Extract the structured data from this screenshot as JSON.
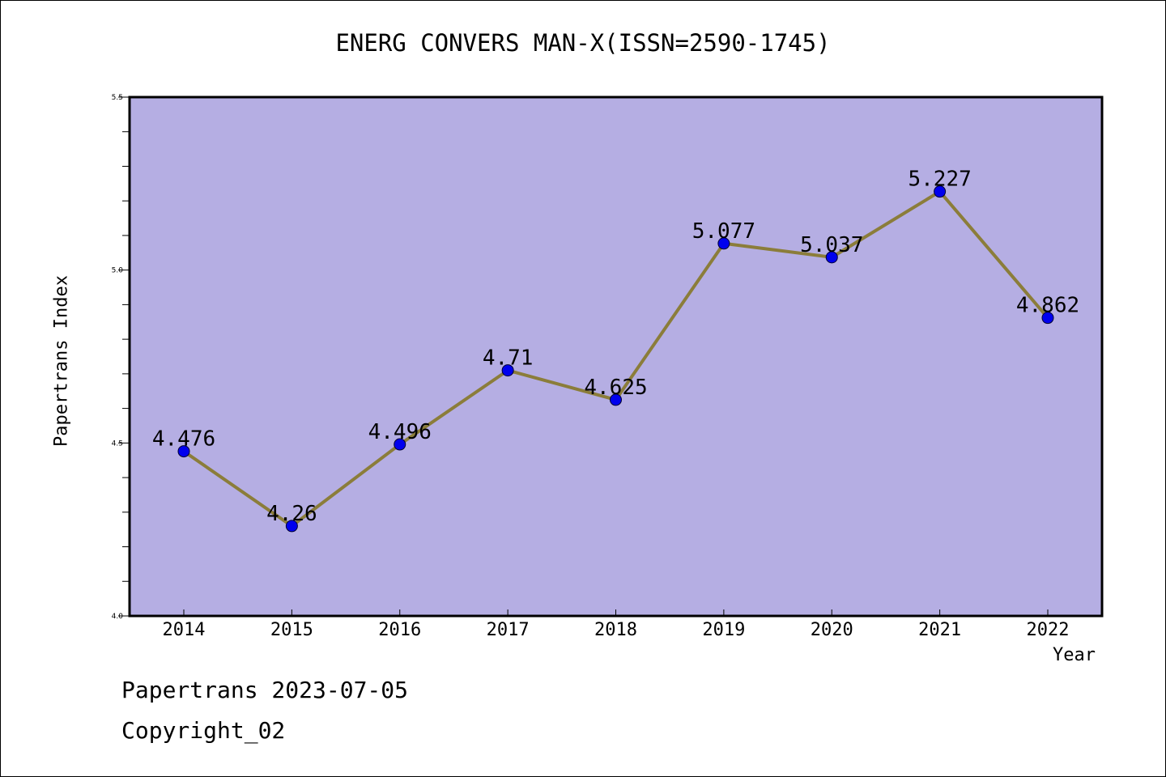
{
  "footer": {
    "line1": "Papertrans 2023-07-05",
    "line2": "Copyright_02"
  },
  "chart_data": {
    "type": "line",
    "title": "ENERG CONVERS MAN-X(ISSN=2590-1745)",
    "xlabel": "Year",
    "ylabel": "Papertrans Index",
    "categories": [
      "2014",
      "2015",
      "2016",
      "2017",
      "2018",
      "2019",
      "2020",
      "2021",
      "2022"
    ],
    "values": [
      4.476,
      4.26,
      4.496,
      4.71,
      4.625,
      5.077,
      5.037,
      5.227,
      4.862
    ],
    "data_labels": [
      "4.476",
      "4.26",
      "4.496",
      "4.71",
      "4.625",
      "5.077",
      "5.037",
      "5.227",
      "4.862"
    ],
    "ylim": [
      4.0,
      5.5
    ],
    "yticks": [
      "4.0",
      "4.5",
      "5.0",
      "5.5"
    ],
    "grid": false,
    "colors": {
      "plot_background": "#b5aee3",
      "line": "#8b7d3a",
      "marker": "#0000ee"
    }
  }
}
